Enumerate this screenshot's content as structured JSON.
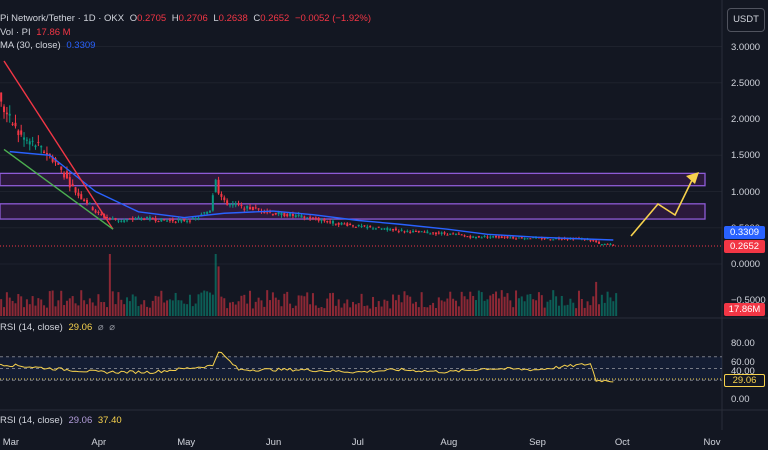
{
  "header": {
    "title": "Pi Network/Tether · 1D · OKX",
    "open_label": "O",
    "open": "0.2705",
    "high_label": "H",
    "high": "0.2706",
    "low_label": "L",
    "low": "0.2638",
    "close_label": "C",
    "close": "0.2652",
    "change": "−0.0052 (−1.92%)",
    "volume_label": "Vol · PI",
    "volume_value": "17.86 M",
    "ma_label": "MA (30, close)",
    "ma_value": "0.3309"
  },
  "currency_button": "USDT",
  "price_axis": [
    "3.0000",
    "2.5000",
    "2.0000",
    "1.5000",
    "1.0000",
    "0.5000",
    "0.0000",
    "−0.5000"
  ],
  "tags": {
    "ma": "0.3309",
    "price": "0.2652",
    "volume": "17.86M",
    "rsi": "29.06"
  },
  "rsi_panel": {
    "label": "RSI (14, close)",
    "value": "29.06",
    "axis": [
      "80.00",
      "60.00",
      "40.00",
      "0.00"
    ]
  },
  "rsi_footer": {
    "label": "RSI (14, close)",
    "value1": "29.06",
    "value2": "37.40"
  },
  "time_axis": [
    "Mar",
    "Apr",
    "May",
    "Jun",
    "Jul",
    "Aug",
    "Sep",
    "Oct",
    "Nov"
  ],
  "colors": {
    "bg": "#131722",
    "up": "#089981",
    "down": "#f23645",
    "ma": "#2962ff",
    "rsi": "#f7d24d",
    "zone": "#9c27b0",
    "arrow": "#f7d24d"
  },
  "chart_data": {
    "type": "candlestick",
    "title": "Pi Network/Tether · 1D · OKX",
    "x_range": [
      "2025-02-20",
      "2025-11-05"
    ],
    "ylim": [
      -0.5,
      3.0
    ],
    "series": [
      {
        "name": "PI price (approx. daily close)",
        "x": [
          "2025-02-20",
          "2025-02-23",
          "2025-02-26",
          "2025-03-01",
          "2025-03-04",
          "2025-03-07",
          "2025-03-10",
          "2025-03-13",
          "2025-03-16",
          "2025-03-19",
          "2025-03-22",
          "2025-03-25",
          "2025-03-28",
          "2025-03-31",
          "2025-04-03",
          "2025-04-06",
          "2025-04-10",
          "2025-04-15",
          "2025-04-20",
          "2025-04-25",
          "2025-04-30",
          "2025-05-05",
          "2025-05-10",
          "2025-05-12",
          "2025-05-13",
          "2025-05-15",
          "2025-05-18",
          "2025-05-22",
          "2025-05-27",
          "2025-06-01",
          "2025-06-06",
          "2025-06-11",
          "2025-06-16",
          "2025-06-21",
          "2025-06-26",
          "2025-07-01",
          "2025-07-06",
          "2025-07-11",
          "2025-07-16",
          "2025-07-21",
          "2025-07-26",
          "2025-07-31",
          "2025-08-05",
          "2025-08-10",
          "2025-08-15",
          "2025-08-20",
          "2025-08-25",
          "2025-08-30",
          "2025-09-04",
          "2025-09-09",
          "2025-09-14",
          "2025-09-19",
          "2025-09-22",
          "2025-09-23",
          "2025-09-25",
          "2025-09-28"
        ],
        "values": [
          1.6,
          2.5,
          2.2,
          2.0,
          1.8,
          1.7,
          1.65,
          1.55,
          1.45,
          1.3,
          1.1,
          0.95,
          0.85,
          0.72,
          0.65,
          0.62,
          0.6,
          0.63,
          0.62,
          0.6,
          0.6,
          0.62,
          0.75,
          1.2,
          1.0,
          0.85,
          0.82,
          0.78,
          0.75,
          0.7,
          0.68,
          0.65,
          0.62,
          0.58,
          0.55,
          0.52,
          0.5,
          0.48,
          0.46,
          0.44,
          0.43,
          0.42,
          0.4,
          0.37,
          0.38,
          0.37,
          0.36,
          0.36,
          0.35,
          0.35,
          0.35,
          0.34,
          0.3,
          0.27,
          0.27,
          0.27
        ]
      },
      {
        "name": "MA (30, close)",
        "x": [
          "2025-03-01",
          "2025-03-15",
          "2025-03-31",
          "2025-04-15",
          "2025-05-01",
          "2025-05-15",
          "2025-06-01",
          "2025-06-15",
          "2025-07-01",
          "2025-07-15",
          "2025-08-01",
          "2025-08-15",
          "2025-09-01",
          "2025-09-15",
          "2025-09-28"
        ],
        "values": [
          1.55,
          1.5,
          1.0,
          0.72,
          0.64,
          0.7,
          0.73,
          0.68,
          0.6,
          0.55,
          0.48,
          0.41,
          0.37,
          0.35,
          0.3309
        ]
      },
      {
        "name": "RSI (14, close)",
        "x": [
          "2025-02-20",
          "2025-03-10",
          "2025-04-01",
          "2025-04-20",
          "2025-05-11",
          "2025-05-13",
          "2025-05-20",
          "2025-06-10",
          "2025-07-01",
          "2025-07-15",
          "2025-08-01",
          "2025-08-15",
          "2025-09-01",
          "2025-09-20",
          "2025-09-22",
          "2025-09-28"
        ],
        "values": [
          60,
          52,
          44,
          44,
          55,
          80,
          48,
          48,
          44,
          48,
          44,
          50,
          48,
          58,
          30,
          29.06
        ]
      }
    ],
    "zones": [
      {
        "from": 1.08,
        "to": 1.25
      },
      {
        "from": 0.62,
        "to": 0.83
      }
    ],
    "rsi_ylim": [
      0,
      100
    ],
    "rsi_levels": [
      70,
      50,
      30
    ]
  }
}
